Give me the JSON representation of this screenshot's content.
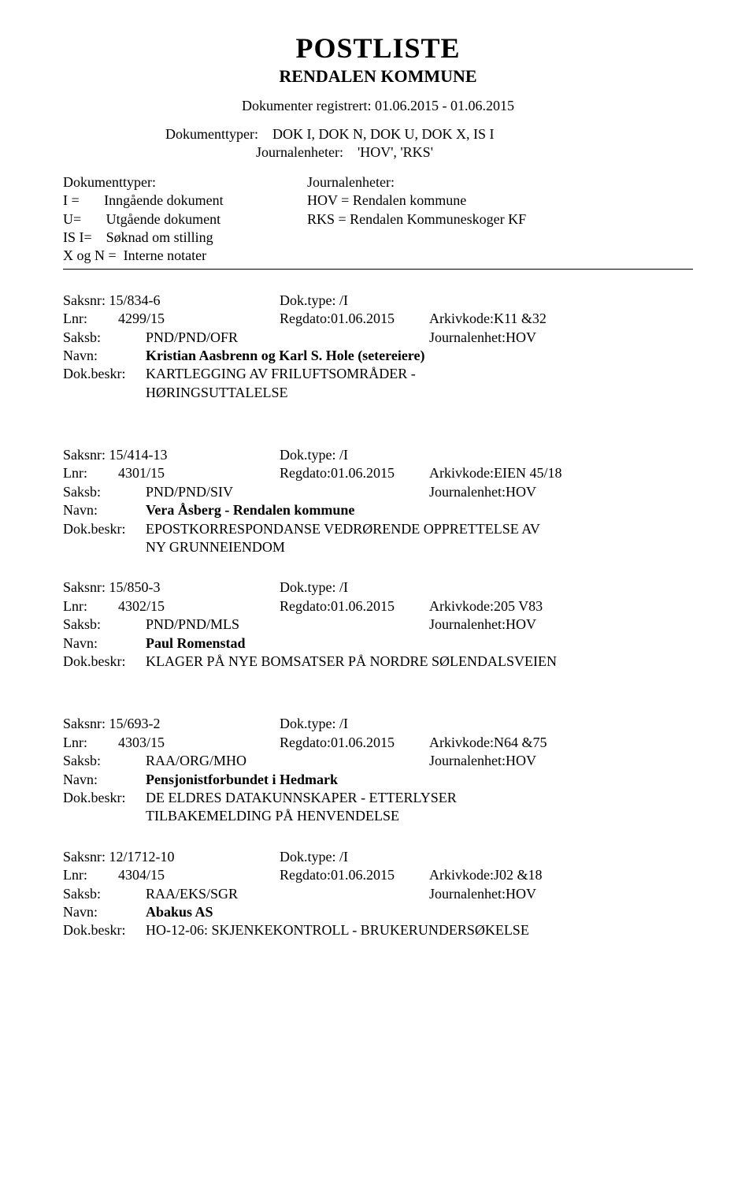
{
  "header": {
    "title": "POSTLISTE",
    "subtitle": "RENDALEN KOMMUNE",
    "registered": "Dokumenter registrert: 01.06.2015 - 01.06.2015",
    "doctypes_label": "Dokumenttyper:",
    "doctypes_value": "DOK I, DOK N, DOK U, DOK X, IS I",
    "journal_label": "Journalenheter:",
    "journal_value": "'HOV', 'RKS'"
  },
  "legend": {
    "left_heading": "Dokumenttyper:",
    "right_heading": "Journalenheter:",
    "rows": [
      {
        "left": "I =       Inngående dokument",
        "right": "HOV =  Rendalen kommune"
      },
      {
        "left": "U=       Utgående dokument",
        "right": "RKS =   Rendalen Kommuneskoger KF"
      },
      {
        "left": "IS I=    Søknad om stilling",
        "right": ""
      },
      {
        "left": "X og N =  Interne notater",
        "right": ""
      }
    ]
  },
  "entries": [
    {
      "saksnr": "Saksnr: 15/834-6",
      "doktype": "Dok.type: /I",
      "lnr": "Lnr:",
      "lnr_val": "4299/15",
      "regdato": "Regdato:01.06.2015",
      "arkiv": "Arkivkode:K11 &32",
      "saksb_label": "Saksb:",
      "saksb": "PND/PND/OFR",
      "journal": "Journalenhet:HOV",
      "navn_label": "Navn:",
      "navn": "Kristian  Aasbrenn og Karl S. Hole (setereiere)",
      "beskr_label": "Dok.beskr:",
      "beskr": "KARTLEGGING AV FRILUFTSOMRÅDER -",
      "beskr2": "HØRINGSUTTALELSE"
    },
    {
      "saksnr": "Saksnr: 15/414-13",
      "doktype": "Dok.type: /I",
      "lnr": "Lnr:",
      "lnr_val": "4301/15",
      "regdato": "Regdato:01.06.2015",
      "arkiv": "Arkivkode:EIEN 45/18",
      "saksb_label": "Saksb:",
      "saksb": "PND/PND/SIV",
      "journal": "Journalenhet:HOV",
      "navn_label": "Navn:",
      "navn": "Vera Åsberg - Rendalen kommune",
      "beskr_label": "Dok.beskr:",
      "beskr": "EPOSTKORRESPONDANSE VEDRØRENDE OPPRETTELSE AV",
      "beskr2": "NY GRUNNEIENDOM"
    },
    {
      "saksnr": "Saksnr: 15/850-3",
      "doktype": "Dok.type: /I",
      "lnr": "Lnr:",
      "lnr_val": "4302/15",
      "regdato": "Regdato:01.06.2015",
      "arkiv": "Arkivkode:205 V83",
      "saksb_label": "Saksb:",
      "saksb": "PND/PND/MLS",
      "journal": "Journalenhet:HOV",
      "navn_label": "Navn:",
      "navn": "Paul Romenstad",
      "beskr_label": "Dok.beskr:",
      "beskr": "KLAGER PÅ NYE BOMSATSER PÅ NORDRE SØLENDALSVEIEN",
      "beskr2": ""
    },
    {
      "saksnr": "Saksnr: 15/693-2",
      "doktype": "Dok.type: /I",
      "lnr": "Lnr:",
      "lnr_val": "4303/15",
      "regdato": "Regdato:01.06.2015",
      "arkiv": "Arkivkode:N64 &75",
      "saksb_label": "Saksb:",
      "saksb": "RAA/ORG/MHO",
      "journal": "Journalenhet:HOV",
      "navn_label": "Navn:",
      "navn": "Pensjonistforbundet i Hedmark",
      "beskr_label": "Dok.beskr:",
      "beskr": "DE ELDRES DATAKUNNSKAPER - ETTERLYSER",
      "beskr2": "TILBAKEMELDING PÅ HENVENDELSE"
    },
    {
      "saksnr": "Saksnr: 12/1712-10",
      "doktype": "Dok.type: /I",
      "lnr": "Lnr:",
      "lnr_val": "4304/15",
      "regdato": "Regdato:01.06.2015",
      "arkiv": "Arkivkode:J02 &18",
      "saksb_label": "Saksb:",
      "saksb": "RAA/EKS/SGR",
      "journal": "Journalenhet:HOV",
      "navn_label": "Navn:",
      "navn": "Abakus AS",
      "beskr_label": "Dok.beskr:",
      "beskr": "HO-12-06: SKJENKEKONTROLL - BRUKERUNDERSØKELSE",
      "beskr2": ""
    }
  ],
  "group_breaks_after": [
    0,
    2
  ]
}
